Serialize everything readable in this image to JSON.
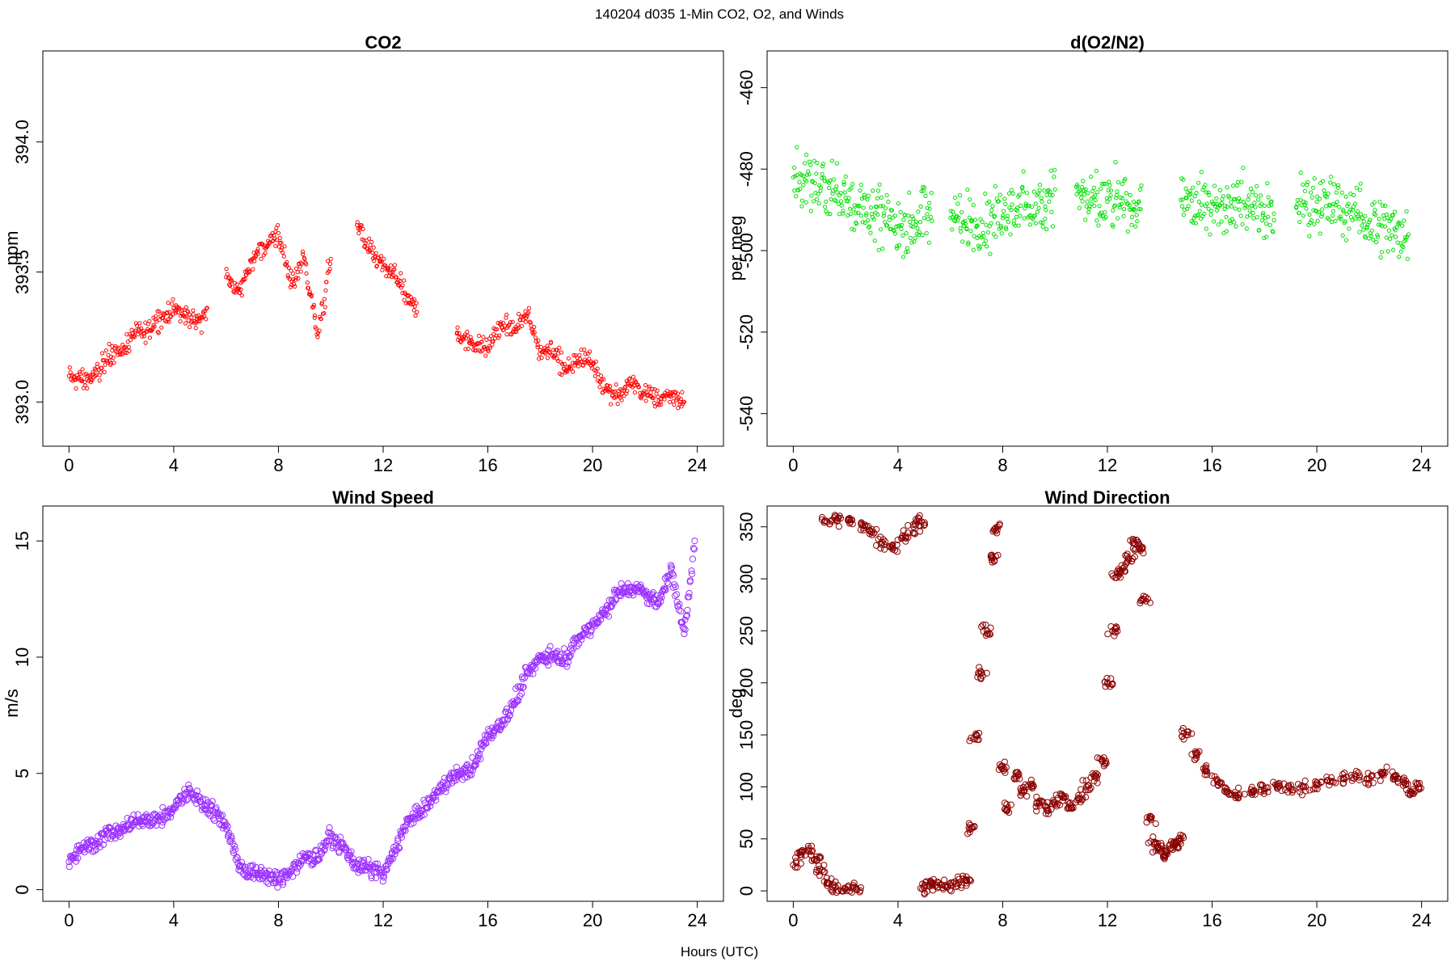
{
  "figure": {
    "suptitle": "140204   d035   1-Min CO2, O2, and Winds",
    "xlabel": "Hours (UTC)"
  },
  "chart_data": [
    {
      "type": "scatter",
      "title": "CO2",
      "xlabel": "",
      "ylabel": "ppm",
      "xlim": [
        -1,
        25
      ],
      "ylim": [
        392.83,
        394.35
      ],
      "xticks": [
        0,
        4,
        8,
        12,
        16,
        20,
        24
      ],
      "yticks": [
        393.0,
        393.5,
        394.0
      ],
      "ytick_labels": [
        "393.0",
        "393.5",
        "394.0"
      ],
      "color": "#ff0000",
      "marker_size": "small",
      "gaps": [
        [
          5.3,
          6.0
        ],
        [
          10.0,
          11.0
        ],
        [
          13.3,
          14.8
        ]
      ],
      "series": [
        {
          "x": [
            0.0,
            0.5,
            1.0,
            1.5,
            2.0,
            2.5,
            3.0,
            3.5,
            4.0,
            4.5,
            5.0,
            6.0,
            6.5,
            7.0,
            7.5,
            8.0,
            8.5,
            9.0,
            9.5,
            10.0,
            11.0,
            11.5,
            12.0,
            12.5,
            13.0,
            15.0,
            15.5,
            16.0,
            16.5,
            17.0,
            17.5,
            18.0,
            18.5,
            19.0,
            19.5,
            20.0,
            20.5,
            21.0,
            21.5,
            22.0,
            22.5,
            23.0,
            23.5
          ],
          "y": [
            393.1,
            393.08,
            393.1,
            393.18,
            393.2,
            393.25,
            393.28,
            393.33,
            393.36,
            393.33,
            393.31,
            393.48,
            393.42,
            393.55,
            393.6,
            393.65,
            393.45,
            393.55,
            393.25,
            393.55,
            393.68,
            393.58,
            393.52,
            393.48,
            393.38,
            393.25,
            393.22,
            393.2,
            393.3,
            393.28,
            393.33,
            393.2,
            393.2,
            393.12,
            393.18,
            393.15,
            393.05,
            393.03,
            393.07,
            393.03,
            393.02,
            393.02,
            393.0
          ]
        }
      ]
    },
    {
      "type": "scatter",
      "title": "d(O2/N2)",
      "xlabel": "",
      "ylabel": "per meg",
      "xlim": [
        -1,
        25
      ],
      "ylim": [
        -548,
        -451
      ],
      "xticks": [
        0,
        4,
        8,
        12,
        16,
        20,
        24
      ],
      "yticks": [
        -540,
        -520,
        -500,
        -480,
        -460
      ],
      "ytick_labels": [
        "-540",
        "-520",
        "-500",
        "-480",
        "-460"
      ],
      "color": "#00e000",
      "marker_size": "small",
      "gaps": [
        [
          5.3,
          6.0
        ],
        [
          10.0,
          10.8
        ],
        [
          13.3,
          14.8
        ],
        [
          18.4,
          19.2
        ]
      ],
      "series": [
        {
          "x": [
            0.0,
            0.5,
            1.0,
            1.5,
            2.0,
            2.5,
            3.0,
            3.5,
            4.0,
            4.5,
            5.0,
            6.0,
            6.5,
            7.0,
            7.5,
            8.0,
            8.5,
            9.0,
            9.5,
            10.0,
            11.0,
            11.5,
            12.0,
            12.5,
            13.0,
            15.0,
            15.5,
            16.0,
            16.5,
            17.0,
            17.5,
            18.0,
            19.5,
            20.0,
            20.5,
            21.0,
            21.5,
            22.0,
            22.5,
            23.0,
            23.5
          ],
          "y": [
            -482,
            -483,
            -484,
            -486,
            -487,
            -489,
            -491,
            -493,
            -494,
            -494,
            -492,
            -492,
            -493,
            -494,
            -494,
            -492,
            -490,
            -489,
            -488,
            -485,
            -487,
            -489,
            -488,
            -487,
            -488,
            -487,
            -488,
            -488,
            -489,
            -488,
            -489,
            -489,
            -488,
            -488,
            -489,
            -490,
            -491,
            -493,
            -494,
            -495,
            -496
          ]
        }
      ]
    },
    {
      "type": "scatter",
      "title": "Wind Speed",
      "xlabel": "",
      "ylabel": "m/s",
      "xlim": [
        -1,
        25
      ],
      "ylim": [
        -0.5,
        16.5
      ],
      "xticks": [
        0,
        4,
        8,
        12,
        16,
        20,
        24
      ],
      "yticks": [
        0,
        5,
        10,
        15
      ],
      "ytick_labels": [
        "0",
        "5",
        "10",
        "15"
      ],
      "color": "#9b30ff",
      "marker_size": "large",
      "gaps": [],
      "series": [
        {
          "x": [
            0.0,
            0.5,
            1.0,
            1.5,
            2.0,
            2.5,
            3.0,
            3.5,
            4.0,
            4.5,
            5.0,
            5.5,
            6.0,
            6.5,
            7.0,
            7.5,
            8.0,
            8.5,
            9.0,
            9.5,
            10.0,
            10.5,
            11.0,
            11.5,
            12.0,
            12.5,
            13.0,
            13.5,
            14.0,
            14.5,
            15.0,
            15.5,
            16.0,
            16.5,
            17.0,
            17.5,
            18.0,
            18.5,
            19.0,
            19.5,
            20.0,
            20.5,
            21.0,
            21.5,
            22.0,
            22.5,
            23.0,
            23.5,
            23.9
          ],
          "y": [
            1.2,
            1.8,
            2.0,
            2.4,
            2.6,
            2.9,
            3.1,
            3.0,
            3.5,
            4.2,
            3.8,
            3.4,
            2.8,
            1.0,
            0.7,
            0.6,
            0.4,
            0.8,
            1.4,
            1.3,
            2.3,
            1.8,
            1.0,
            0.9,
            0.6,
            1.9,
            3.0,
            3.4,
            4.0,
            4.8,
            5.0,
            5.4,
            6.6,
            7.1,
            8.0,
            9.3,
            10.0,
            10.1,
            10.0,
            10.9,
            11.4,
            12.0,
            12.8,
            13.0,
            12.8,
            12.3,
            13.8,
            11.0,
            15.0
          ]
        }
      ]
    },
    {
      "type": "scatter",
      "title": "Wind Direction",
      "xlabel": "",
      "ylabel": "deg",
      "xlim": [
        -1,
        25
      ],
      "ylim": [
        -10,
        370
      ],
      "xticks": [
        0,
        4,
        8,
        12,
        16,
        20,
        24
      ],
      "yticks": [
        0,
        50,
        100,
        150,
        200,
        250,
        300,
        350
      ],
      "ytick_labels": [
        "0",
        "50",
        "100",
        "150",
        "200",
        "250",
        "300",
        "350"
      ],
      "color": "#8b0000",
      "marker_size": "large",
      "gaps": [],
      "series": [
        {
          "x": [
            0.0,
            0.3,
            0.6,
            0.9,
            1.1,
            1.3,
            1.6,
            2.0,
            2.4,
            1.3,
            1.7,
            2.2,
            2.6,
            3.0,
            3.4,
            3.8,
            4.2,
            4.6,
            4.9,
            5.0,
            5.3,
            5.6,
            6.0,
            6.3,
            6.6,
            6.8,
            7.0,
            7.2,
            7.4,
            7.6,
            7.8,
            8.0,
            8.2,
            8.5,
            8.8,
            9.1,
            9.4,
            9.7,
            10.0,
            10.3,
            10.6,
            10.9,
            11.2,
            11.5,
            11.8,
            12.0,
            12.2,
            12.4,
            12.6,
            12.8,
            13.0,
            13.2,
            13.4,
            13.6,
            13.8,
            14.0,
            14.2,
            14.4,
            14.6,
            14.8,
            15.0,
            15.4,
            15.8,
            16.2,
            16.6,
            17.0,
            17.5,
            18.0,
            18.5,
            19.0,
            19.5,
            20.0,
            20.5,
            21.0,
            21.5,
            22.0,
            22.5,
            23.0,
            23.3,
            23.6,
            23.9
          ],
          "y": [
            25,
            35,
            38,
            30,
            20,
            8,
            4,
            2,
            3,
            355,
            358,
            357,
            352,
            345,
            335,
            330,
            340,
            350,
            355,
            3,
            5,
            6,
            5,
            7,
            10,
            60,
            150,
            210,
            250,
            320,
            350,
            120,
            80,
            110,
            95,
            100,
            85,
            80,
            85,
            90,
            80,
            88,
            100,
            110,
            125,
            200,
            250,
            305,
            310,
            320,
            335,
            330,
            280,
            70,
            45,
            40,
            35,
            40,
            45,
            50,
            150,
            130,
            115,
            105,
            95,
            92,
            95,
            98,
            100,
            98,
            100,
            102,
            105,
            108,
            110,
            108,
            112,
            110,
            105,
            95,
            100
          ]
        }
      ]
    }
  ]
}
